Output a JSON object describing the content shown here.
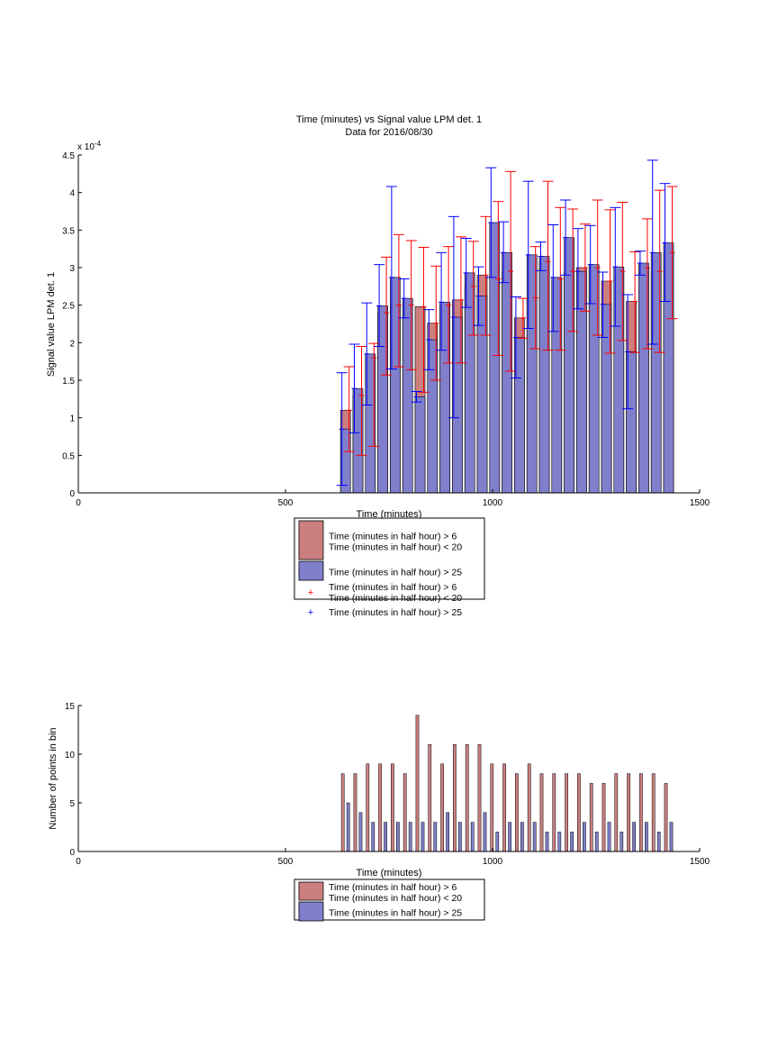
{
  "colors": {
    "red_fill": "#cc7f7f",
    "blue_fill": "#7f7fcc",
    "red_err": "#ff0000",
    "blue_err": "#0000ff"
  },
  "chart_data": [
    {
      "type": "bar",
      "title": "Time (minutes) vs Signal value LPM det. 1",
      "subtitle": "Data for 2016/08/30",
      "xlabel": "Time (minutes)",
      "ylabel": "Signal value LPM det. 1",
      "y_exponent": "x 10",
      "y_exponent_power": "-4",
      "xlim": [
        0,
        1500
      ],
      "ylim": [
        0,
        4.5
      ],
      "xticks": [
        "0",
        "500",
        "1000",
        "1500"
      ],
      "yticks": [
        "0",
        "0.5",
        "1",
        "1.5",
        "2",
        "2.5",
        "3",
        "3.5",
        "4",
        "4.5"
      ],
      "grid": false,
      "bin_width_minutes": 30,
      "x": [
        645,
        675,
        705,
        735,
        765,
        795,
        825,
        855,
        885,
        915,
        945,
        975,
        1005,
        1035,
        1065,
        1095,
        1125,
        1155,
        1185,
        1215,
        1245,
        1275,
        1305,
        1335,
        1365,
        1395,
        1425
      ],
      "series": [
        {
          "name": "Time (minutes in half hour) > 6 Time (minutes in half hour) < 20",
          "values": [
            1.1,
            1.3,
            1.8,
            2.4,
            2.5,
            2.5,
            2.48,
            2.26,
            2.5,
            2.57,
            2.75,
            2.9,
            2.85,
            2.95,
            2.33,
            2.6,
            3.08,
            2.85,
            2.95,
            3.0,
            3.0,
            2.82,
            2.95,
            2.55,
            3.0,
            2.95,
            3.2
          ],
          "err_low": [
            0.55,
            0.5,
            0.62,
            1.57,
            1.68,
            1.64,
            1.34,
            1.5,
            1.73,
            1.73,
            2.1,
            2.1,
            1.83,
            1.62,
            2.06,
            1.92,
            1.9,
            1.9,
            2.15,
            2.42,
            2.1,
            1.86,
            2.03,
            1.87,
            1.92,
            1.87,
            2.32
          ],
          "err_high": [
            1.68,
            1.95,
            1.99,
            3.14,
            3.44,
            3.36,
            3.27,
            3.02,
            3.28,
            3.41,
            3.35,
            3.68,
            3.88,
            4.28,
            2.59,
            3.28,
            4.15,
            3.8,
            3.78,
            3.58,
            3.9,
            3.77,
            3.87,
            3.21,
            3.65,
            4.03,
            4.08
          ]
        },
        {
          "name": "Time (minutes in half hour) > 25",
          "values": [
            0.85,
            1.39,
            1.85,
            2.49,
            2.87,
            2.59,
            1.28,
            2.04,
            2.54,
            2.34,
            2.93,
            2.62,
            3.6,
            3.2,
            2.07,
            3.17,
            3.15,
            2.87,
            3.4,
            2.95,
            3.04,
            2.51,
            3.01,
            1.88,
            3.06,
            3.2,
            3.33
          ],
          "err_low": [
            0.1,
            0.8,
            1.17,
            1.95,
            1.65,
            2.33,
            1.21,
            1.64,
            1.9,
            1.0,
            2.47,
            2.23,
            2.87,
            2.8,
            1.53,
            2.19,
            2.96,
            2.15,
            2.9,
            2.45,
            2.52,
            2.07,
            2.22,
            1.12,
            2.9,
            1.98,
            2.55
          ],
          "err_high": [
            1.6,
            1.98,
            2.53,
            3.04,
            4.08,
            2.85,
            1.35,
            2.44,
            3.2,
            3.68,
            3.39,
            3.01,
            4.33,
            3.61,
            2.61,
            4.15,
            3.34,
            3.57,
            3.9,
            3.52,
            3.56,
            2.94,
            3.8,
            2.64,
            3.22,
            4.43,
            4.12
          ]
        }
      ],
      "legend": {
        "placement": "below",
        "entries": [
          {
            "symbol": "red-box",
            "line1": "Time (minutes in half hour) > 6",
            "line2": "Time (minutes in half hour) < 20"
          },
          {
            "symbol": "blue-box",
            "line1": "Time (minutes in half hour) > 25",
            "line2": ""
          },
          {
            "symbol": "red-plus",
            "line1": "Time (minutes in half hour) > 6",
            "line2": "Time (minutes in half hour) < 20"
          },
          {
            "symbol": "blue-plus",
            "line1": "Time (minutes in half hour) > 25",
            "line2": ""
          }
        ]
      }
    },
    {
      "type": "bar",
      "xlabel": "Time (minutes)",
      "ylabel": "Number of points in bin",
      "xlim": [
        0,
        1500
      ],
      "ylim": [
        0,
        15
      ],
      "xticks": [
        "0",
        "500",
        "1000",
        "1500"
      ],
      "yticks": [
        "0",
        "5",
        "10",
        "15"
      ],
      "grid": false,
      "x": [
        645,
        675,
        705,
        735,
        765,
        795,
        825,
        855,
        885,
        915,
        945,
        975,
        1005,
        1035,
        1065,
        1095,
        1125,
        1155,
        1185,
        1215,
        1245,
        1275,
        1305,
        1335,
        1365,
        1395,
        1425
      ],
      "series": [
        {
          "name": "Time (minutes in half hour) > 6 Time (minutes in half hour) < 20",
          "values": [
            8,
            8,
            9,
            9,
            9,
            8,
            14,
            11,
            9,
            11,
            11,
            11,
            9,
            9,
            8,
            9,
            8,
            8,
            8,
            8,
            7,
            7,
            8,
            8,
            8,
            8,
            7
          ]
        },
        {
          "name": "Time (minutes in half hour) > 25",
          "values": [
            5,
            4,
            3,
            3,
            3,
            3,
            3,
            3,
            4,
            3,
            3,
            4,
            2,
            3,
            3,
            3,
            2,
            2,
            2,
            3,
            2,
            3,
            2,
            3,
            3,
            2,
            3
          ]
        }
      ],
      "legend": {
        "placement": "below",
        "entries": [
          {
            "symbol": "red-box",
            "line1": "Time (minutes in half hour) > 6",
            "line2": "Time (minutes in half hour) < 20"
          },
          {
            "symbol": "blue-box",
            "line1": "Time (minutes in half hour) > 25",
            "line2": ""
          }
        ]
      }
    }
  ]
}
